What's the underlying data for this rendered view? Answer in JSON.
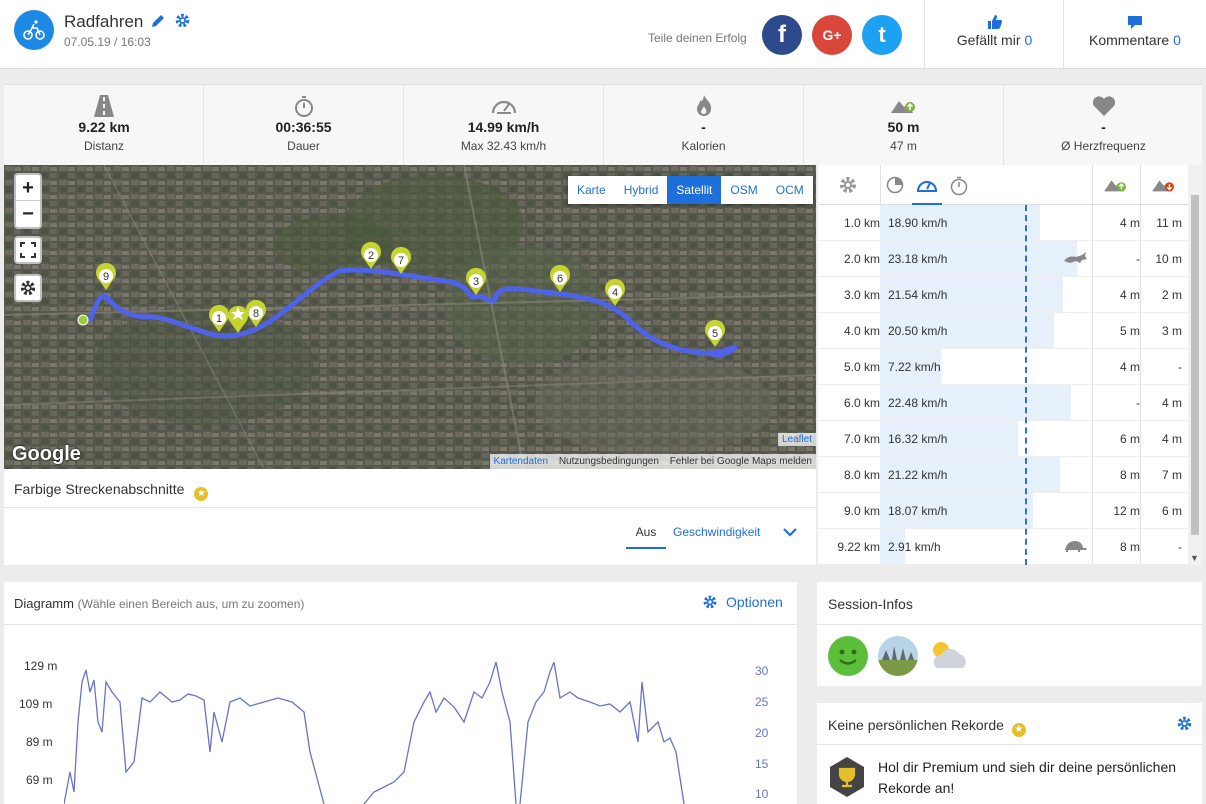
{
  "header": {
    "title": "Radfahren",
    "datetime": "07.05.19 / 16:03",
    "share_label": "Teile deinen Erfolg",
    "social": [
      "f",
      "G+",
      "t"
    ],
    "like_label": "Gefällt mir",
    "like_count": "0",
    "comments_label": "Kommentare",
    "comments_count": "0"
  },
  "stats": [
    {
      "icon": "road-icon",
      "value": "9.22 km",
      "label": "Distanz"
    },
    {
      "icon": "stopwatch-icon",
      "value": "00:36:55",
      "label": "Dauer"
    },
    {
      "icon": "speedometer-icon",
      "value": "14.99 km/h",
      "label": "Max 32.43 km/h"
    },
    {
      "icon": "flame-icon",
      "value": "-",
      "label": "Kalorien"
    },
    {
      "icon": "elevation-up-icon",
      "value": "50 m",
      "label": "47 m"
    },
    {
      "icon": "heart-icon",
      "value": "-",
      "label": "Ø Herzfrequenz"
    }
  ],
  "map": {
    "zoom_in": "+",
    "zoom_out": "−",
    "layers": [
      "Karte",
      "Hybrid",
      "Satellit",
      "OSM",
      "OCM"
    ],
    "active_layer": "Satellit",
    "leaflet": "Leaflet",
    "attribution": [
      "Kartendaten",
      "Nutzungsbedingungen",
      "Fehler bei Google Maps melden"
    ],
    "google": "Google",
    "pins": [
      "9",
      "1",
      "8",
      "2",
      "7",
      "3",
      "6",
      "4",
      "5"
    ]
  },
  "segments": {
    "title": "Farbige Streckenabschnitte",
    "tab_off": "Aus",
    "tab_speed": "Geschwindigkeit"
  },
  "splits": {
    "rows": [
      {
        "km": "1.0 km",
        "speed": "18.90 km/h",
        "speed_value": 18.9,
        "up": "4 m",
        "down": "11 m",
        "marker": ""
      },
      {
        "km": "2.0 km",
        "speed": "23.18 km/h",
        "speed_value": 23.18,
        "up": "-",
        "down": "10 m",
        "marker": "fastest"
      },
      {
        "km": "3.0 km",
        "speed": "21.54 km/h",
        "speed_value": 21.54,
        "up": "4 m",
        "down": "2 m",
        "marker": ""
      },
      {
        "km": "4.0 km",
        "speed": "20.50 km/h",
        "speed_value": 20.5,
        "up": "5 m",
        "down": "3 m",
        "marker": ""
      },
      {
        "km": "5.0 km",
        "speed": "7.22 km/h",
        "speed_value": 7.22,
        "up": "4 m",
        "down": "-",
        "marker": ""
      },
      {
        "km": "6.0 km",
        "speed": "22.48 km/h",
        "speed_value": 22.48,
        "up": "-",
        "down": "4 m",
        "marker": ""
      },
      {
        "km": "7.0 km",
        "speed": "16.32 km/h",
        "speed_value": 16.32,
        "up": "6 m",
        "down": "4 m",
        "marker": ""
      },
      {
        "km": "8.0 km",
        "speed": "21.22 km/h",
        "speed_value": 21.22,
        "up": "8 m",
        "down": "7 m",
        "marker": ""
      },
      {
        "km": "9.0 km",
        "speed": "18.07 km/h",
        "speed_value": 18.07,
        "up": "12 m",
        "down": "6 m",
        "marker": ""
      },
      {
        "km": "9.22 km",
        "speed": "2.91 km/h",
        "speed_value": 2.91,
        "up": "8 m",
        "down": "-",
        "marker": "slowest"
      }
    ]
  },
  "diagram": {
    "title": "Diagramm",
    "hint": "(Wähle einen Bereich aus, um zu zoomen)",
    "options": "Optionen",
    "y_left": [
      "129 m",
      "109 m",
      "89 m",
      "69 m"
    ],
    "y_right": [
      "30",
      "25",
      "20",
      "15",
      "10"
    ]
  },
  "session": {
    "title": "Session-Infos"
  },
  "records": {
    "title": "Keine persönlichen Rekorde",
    "text": "Hol dir Premium und sieh dir deine persönlichen Rekorde an!"
  }
}
